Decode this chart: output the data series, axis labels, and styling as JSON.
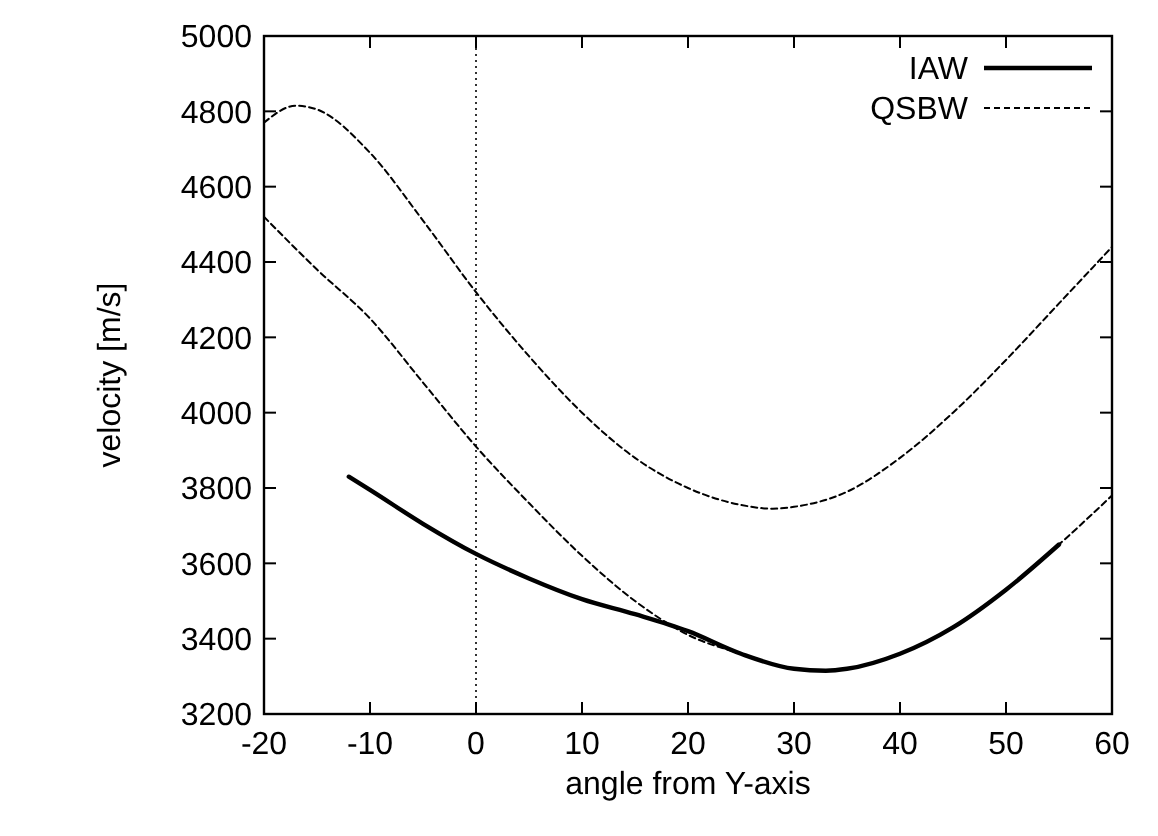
{
  "chart_data": {
    "type": "line",
    "xlabel": "angle from Y-axis",
    "ylabel": "velocity [m/s]",
    "xlim": [
      -20,
      60
    ],
    "xticks": [
      -20,
      -10,
      0,
      10,
      20,
      30,
      40,
      50,
      60
    ],
    "ylim": [
      3200,
      5000
    ],
    "yticks": [
      3200,
      3400,
      3600,
      3800,
      4000,
      4200,
      4400,
      4600,
      4800,
      5000
    ],
    "legend": "top right",
    "grid": false,
    "ref_lines": [
      {
        "axis": "x",
        "value": 0,
        "color": "#000000",
        "line_style": "dotted"
      }
    ],
    "series": [
      {
        "name": "IAW",
        "color": "#000000",
        "line_style": "solid",
        "x": [
          -12,
          -10,
          -5,
          0,
          5,
          10,
          15,
          20,
          25,
          30,
          33,
          35,
          40,
          45,
          50,
          55
        ],
        "values": [
          3830,
          3795,
          3705,
          3625,
          3560,
          3505,
          3465,
          3420,
          3360,
          3320,
          3315,
          3320,
          3360,
          3430,
          3530,
          3650
        ]
      },
      {
        "name": "QSBW",
        "color": "#000000",
        "line_style": "dashed",
        "x": [
          -20,
          -17,
          -15,
          -10,
          -5,
          0,
          5,
          10,
          15,
          20,
          25,
          28,
          30,
          35,
          40,
          45,
          50,
          55,
          60
        ],
        "values": [
          4770,
          4815,
          4805,
          4690,
          4510,
          4320,
          4150,
          4000,
          3880,
          3800,
          3755,
          3745,
          3750,
          3790,
          3880,
          4000,
          4140,
          4290,
          4440
        ]
      },
      {
        "color": "#000000",
        "line_style": "dashed",
        "x": [
          -20,
          -15,
          -10,
          -5,
          0,
          5,
          10,
          15,
          20,
          25,
          30,
          33,
          40,
          50,
          55,
          60
        ],
        "values": [
          4520,
          4380,
          4250,
          4080,
          3910,
          3760,
          3620,
          3500,
          3410,
          3360,
          3320,
          3315,
          3360,
          3530,
          3650,
          3780
        ]
      }
    ]
  }
}
